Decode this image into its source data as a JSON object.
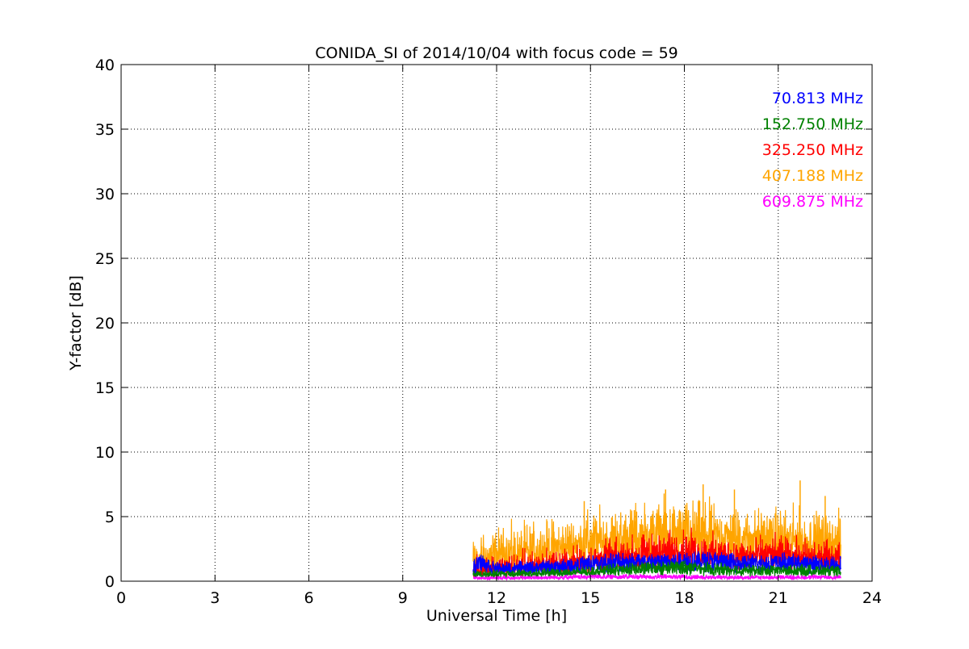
{
  "chart_data": {
    "type": "line",
    "title": "CONIDA_SI of 2014/10/04 with focus code = 59",
    "xlabel": "Universal Time [h]",
    "ylabel": "Y-factor [dB]",
    "xlim": [
      0,
      24
    ],
    "ylim": [
      0,
      40
    ],
    "xticks": [
      0,
      3,
      6,
      9,
      12,
      15,
      18,
      21,
      24
    ],
    "yticks": [
      0,
      5,
      10,
      15,
      20,
      25,
      30,
      35,
      40
    ],
    "grid": true,
    "legend_position": "top-right",
    "series": [
      {
        "name": "70.813 MHz",
        "color": "#0000ff",
        "x": [
          11.25,
          11.5,
          12.0,
          13.0,
          14.0,
          15.0,
          16.0,
          17.0,
          18.0,
          19.0,
          20.0,
          21.0,
          22.0,
          23.0
        ],
        "values": [
          1.2,
          1.6,
          0.9,
          1.0,
          1.1,
          1.4,
          1.6,
          1.5,
          1.7,
          1.6,
          1.4,
          1.5,
          1.4,
          1.3
        ]
      },
      {
        "name": "152.750 MHz",
        "color": "#008000",
        "x": [
          11.25,
          12.0,
          13.0,
          14.0,
          15.0,
          16.0,
          17.0,
          18.0,
          19.0,
          20.0,
          21.0,
          22.0,
          23.0
        ],
        "values": [
          0.4,
          0.5,
          0.5,
          0.6,
          0.7,
          0.9,
          1.0,
          1.1,
          0.9,
          0.8,
          0.8,
          0.8,
          0.7
        ]
      },
      {
        "name": "325.250 MHz",
        "color": "#ff0000",
        "x": [
          11.25,
          12.0,
          13.0,
          14.0,
          15.0,
          16.0,
          17.0,
          18.0,
          19.0,
          20.0,
          21.0,
          22.0,
          23.0
        ],
        "values": [
          0.6,
          0.8,
          0.9,
          1.1,
          1.4,
          1.8,
          2.1,
          2.3,
          2.0,
          1.8,
          1.9,
          1.7,
          1.6
        ]
      },
      {
        "name": "407.188 MHz",
        "color": "#ffa500",
        "x": [
          11.25,
          12.0,
          13.0,
          14.0,
          15.0,
          16.0,
          17.0,
          18.0,
          19.0,
          20.0,
          21.0,
          22.0,
          23.0
        ],
        "values": [
          1.0,
          1.6,
          1.9,
          2.3,
          2.8,
          3.2,
          3.4,
          3.6,
          3.3,
          3.0,
          3.1,
          2.8,
          2.6
        ],
        "peaks": [
          {
            "x": 12.9,
            "y": 4.3
          },
          {
            "x": 14.8,
            "y": 6.2
          },
          {
            "x": 16.4,
            "y": 5.5
          },
          {
            "x": 17.4,
            "y": 7.1
          },
          {
            "x": 18.6,
            "y": 7.5
          },
          {
            "x": 19.6,
            "y": 7.1
          },
          {
            "x": 21.7,
            "y": 7.8
          },
          {
            "x": 22.5,
            "y": 6.6
          }
        ]
      },
      {
        "name": "609.875 MHz",
        "color": "#ff00ff",
        "x": [
          11.25,
          12.0,
          13.0,
          14.0,
          15.0,
          16.0,
          17.0,
          18.0,
          19.0,
          20.0,
          21.0,
          22.0,
          23.0
        ],
        "values": [
          0.2,
          0.25,
          0.25,
          0.3,
          0.35,
          0.35,
          0.35,
          0.35,
          0.3,
          0.3,
          0.3,
          0.3,
          0.3
        ]
      }
    ]
  }
}
